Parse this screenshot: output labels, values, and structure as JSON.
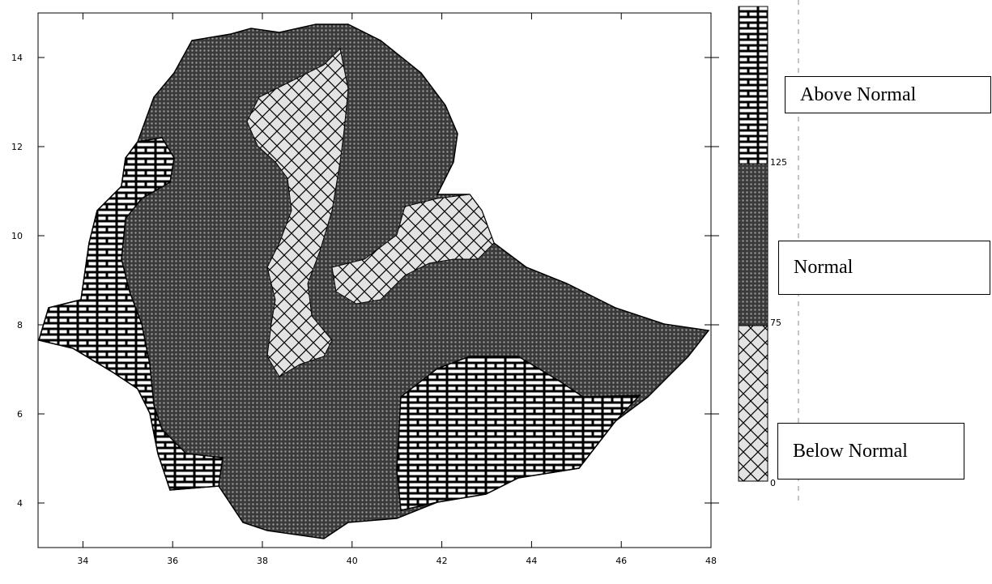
{
  "map": {
    "x_ticks": [
      "34",
      "36",
      "38",
      "40",
      "42",
      "44",
      "46",
      "48"
    ],
    "y_ticks": [
      "4",
      "6",
      "8",
      "10",
      "12",
      "14"
    ],
    "x_range": [
      33,
      48
    ],
    "y_range": [
      3,
      15
    ],
    "regions": [
      {
        "category": "Below Normal",
        "pattern": "crosshatch",
        "color": "#d9d9d9"
      },
      {
        "category": "Normal",
        "pattern": "dense-dots",
        "color": "#555555"
      },
      {
        "category": "Above Normal",
        "pattern": "brick",
        "color": "#ffffff"
      }
    ]
  },
  "colorbar": {
    "ticks": [
      "125",
      "75",
      "0"
    ],
    "boundaries": [
      0,
      75,
      125
    ]
  },
  "legend": {
    "above": "Above Normal",
    "normal": "Normal",
    "below": "Below Normal"
  }
}
